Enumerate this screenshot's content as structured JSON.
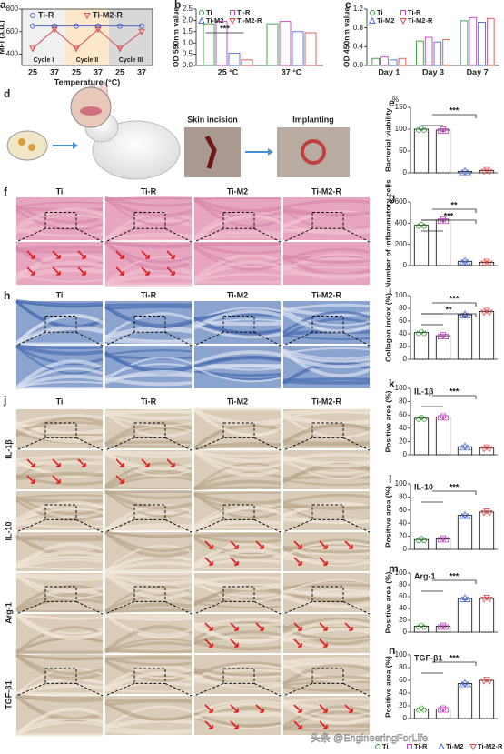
{
  "chart_data": [
    {
      "type": "line",
      "label": "a",
      "ylabel": "MFI (a.u.)",
      "xlabel": "Temperature (°C)",
      "categories": [
        "25",
        "37",
        "25",
        "37",
        "25",
        "37"
      ],
      "series": [
        {
          "name": "Ti-R",
          "color": "#4a6ad0",
          "values": [
            650,
            650,
            650,
            650,
            650,
            650
          ]
        },
        {
          "name": "Ti-M2-R",
          "color": "#e05050",
          "values": [
            450,
            620,
            450,
            620,
            450,
            600
          ]
        }
      ],
      "ylim": [
        300,
        800
      ],
      "yticks": [
        400,
        600,
        800
      ],
      "annotations": [
        "Cycle I",
        "Cycle II",
        "Cycle III"
      ]
    },
    {
      "type": "grouped",
      "label": "b",
      "ylabel": "OD 590nm value",
      "categories": [
        "25 °C",
        "37 °C"
      ],
      "series": [
        {
          "name": "Ti",
          "color": "#3a9a3a",
          "values": [
            1.85,
            1.85
          ]
        },
        {
          "name": "Ti-R",
          "color": "#c040c0",
          "values": [
            1.95,
            1.95
          ]
        },
        {
          "name": "Ti-M2",
          "color": "#4a6ad0",
          "values": [
            0.55,
            1.5
          ]
        },
        {
          "name": "Ti-M2-R",
          "color": "#e05050",
          "values": [
            0.25,
            1.45
          ]
        }
      ],
      "ylim": [
        0,
        2.5
      ],
      "yticks": [
        {
          "value": 0,
          "label": "0.0"
        },
        0.5,
        {
          "value": 1,
          "label": "1.0"
        },
        1.5,
        {
          "value": 2,
          "label": "2.0"
        },
        2.5
      ],
      "annotations": [
        "***"
      ]
    },
    {
      "type": "grouped",
      "label": "c",
      "ylabel": "OD 450nm value",
      "categories": [
        "Day 1",
        "Day 3",
        "Day 7"
      ],
      "series": [
        {
          "name": "Ti",
          "color": "#3a9a3a",
          "values": [
            0.15,
            0.52,
            0.95
          ]
        },
        {
          "name": "Ti-R",
          "color": "#c040c0",
          "values": [
            0.18,
            0.6,
            1.02
          ]
        },
        {
          "name": "Ti-M2",
          "color": "#4a6ad0",
          "values": [
            0.12,
            0.5,
            0.92
          ]
        },
        {
          "name": "Ti-M2-R",
          "color": "#e05050",
          "values": [
            0.15,
            0.55,
            1.0
          ]
        }
      ],
      "ylim": [
        0,
        1.2
      ],
      "yticks": [
        {
          "value": 0,
          "label": "0.0"
        },
        0.4,
        0.8,
        1.2
      ],
      "annotations": []
    },
    {
      "type": "bar",
      "label": "e",
      "ylabel": "Bacterial viability",
      "unit": "%",
      "values": [
        100,
        98,
        3,
        5
      ],
      "colors": [
        "#3a9a3a",
        "#c040c0",
        "#4a6ad0",
        "#e05050"
      ],
      "ylim": [
        0,
        150
      ],
      "yticks": [
        0,
        50,
        100,
        150
      ],
      "annotations": [
        "***"
      ]
    },
    {
      "type": "bar",
      "label": "g",
      "ylabel": "Number of inflammatory cells",
      "values": [
        380,
        430,
        40,
        30
      ],
      "colors": [
        "#3a9a3a",
        "#c040c0",
        "#4a6ad0",
        "#e05050"
      ],
      "ylim": [
        0,
        600
      ],
      "yticks": [
        0,
        200,
        400,
        600
      ],
      "annotations": [
        "**",
        "***"
      ]
    },
    {
      "type": "bar",
      "label": "i",
      "ylabel": "Collagen index (%)",
      "values": [
        42,
        37,
        70,
        75
      ],
      "colors": [
        "#3a9a3a",
        "#c040c0",
        "#4a6ad0",
        "#e05050"
      ],
      "ylim": [
        0,
        100
      ],
      "yticks": [
        0,
        20,
        40,
        60,
        80,
        100
      ],
      "annotations": [
        "***",
        "**"
      ]
    },
    {
      "type": "bar",
      "label": "k",
      "ylabel": "Positive area (%)",
      "inset": "IL-1β",
      "values": [
        55,
        57,
        12,
        10
      ],
      "colors": [
        "#3a9a3a",
        "#c040c0",
        "#4a6ad0",
        "#e05050"
      ],
      "ylim": [
        0,
        100
      ],
      "yticks": [
        0,
        20,
        40,
        60,
        80,
        100
      ],
      "annotations": [
        "***"
      ]
    },
    {
      "type": "bar",
      "label": "l",
      "ylabel": "Positive area (%)",
      "inset": "IL-10",
      "values": [
        15,
        16,
        52,
        57
      ],
      "colors": [
        "#3a9a3a",
        "#c040c0",
        "#4a6ad0",
        "#e05050"
      ],
      "ylim": [
        0,
        100
      ],
      "yticks": [
        0,
        20,
        40,
        60,
        80,
        100
      ],
      "annotations": [
        "***"
      ]
    },
    {
      "type": "bar",
      "label": "m",
      "ylabel": "Positive area (%)",
      "inset": "Arg-1",
      "values": [
        10,
        10,
        57,
        57
      ],
      "colors": [
        "#3a9a3a",
        "#c040c0",
        "#4a6ad0",
        "#e05050"
      ],
      "ylim": [
        0,
        100
      ],
      "yticks": [
        0,
        20,
        40,
        60,
        80,
        100
      ],
      "annotations": [
        "***"
      ]
    },
    {
      "type": "bar",
      "label": "n",
      "ylabel": "Positive area (%)",
      "inset": "TGF-β1",
      "values": [
        15,
        15,
        55,
        60
      ],
      "colors": [
        "#3a9a3a",
        "#c040c0",
        "#4a6ad0",
        "#e05050"
      ],
      "ylim": [
        0,
        100
      ],
      "yticks": [
        0,
        20,
        40,
        60,
        80,
        100
      ],
      "annotations": [
        "***"
      ]
    }
  ],
  "illustration": {
    "label": "d",
    "steps": [
      "Skin incision",
      "Implanting"
    ]
  },
  "histology": [
    {
      "label": "f",
      "columns": [
        "Ti",
        "Ti-R",
        "Ti-M2",
        "Ti-M2-R"
      ]
    },
    {
      "label": "h",
      "columns": [
        "Ti",
        "Ti-R",
        "Ti-M2",
        "Ti-M2-R"
      ]
    },
    {
      "label": "j",
      "columns": [
        "Ti",
        "Ti-R",
        "Ti-M2",
        "Ti-M2-R"
      ],
      "rows": [
        "IL-1β",
        "IL-10",
        "Arg-1",
        "TGF-β1"
      ]
    }
  ],
  "legend": [
    {
      "name": "Ti",
      "color": "#3a9a3a"
    },
    {
      "name": "Ti-R",
      "color": "#c040c0"
    },
    {
      "name": "Ti-M2",
      "color": "#4a6ad0"
    },
    {
      "name": "Ti-M2-R",
      "color": "#e05050"
    }
  ],
  "watermark": "头条 @EngineeringForLife"
}
